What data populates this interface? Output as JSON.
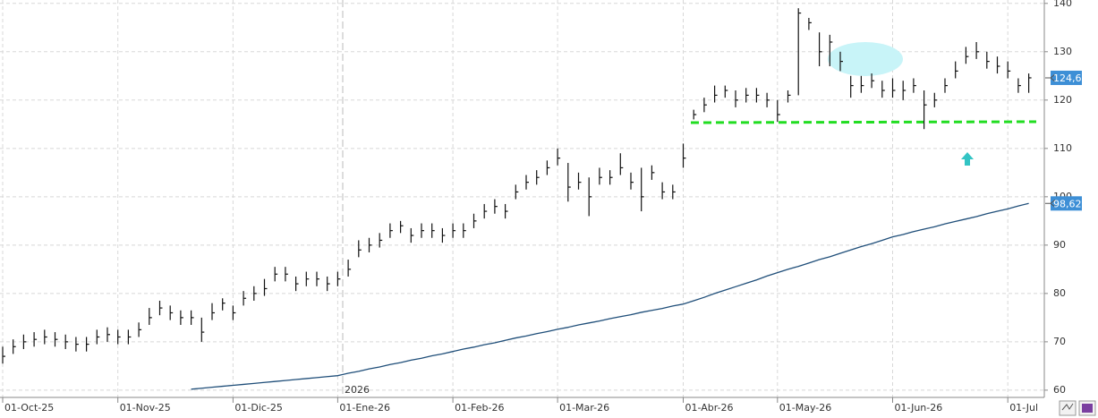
{
  "chart_data": {
    "type": "ohlc",
    "categories": [
      "01-Oct-25",
      null,
      null,
      null,
      null,
      null,
      null,
      null,
      null,
      null,
      null,
      "01-Nov-25",
      null,
      null,
      null,
      null,
      null,
      null,
      null,
      null,
      null,
      null,
      "01-Dic-25",
      null,
      null,
      null,
      null,
      null,
      null,
      null,
      null,
      null,
      "01-Ene-26",
      null,
      null,
      null,
      null,
      null,
      null,
      null,
      null,
      null,
      null,
      "01-Feb-26",
      null,
      null,
      null,
      null,
      null,
      null,
      null,
      null,
      null,
      "01-Mar-26",
      null,
      null,
      null,
      null,
      null,
      null,
      null,
      null,
      null,
      null,
      null,
      "01-Abr-26",
      null,
      null,
      null,
      null,
      null,
      null,
      null,
      null,
      "01-May-26",
      null,
      null,
      null,
      null,
      null,
      null,
      null,
      null,
      null,
      null,
      "01-Jun-26",
      null,
      null,
      null,
      null,
      null,
      null,
      null,
      null,
      null,
      null,
      "01-Jul",
      null,
      null
    ],
    "year_label": "2026",
    "ohlc": {
      "color": "#111111",
      "tag_color": "#3d8fd6",
      "last_label": "124,6",
      "high": [
        69,
        70.5,
        71.5,
        72,
        72.5,
        72,
        71.5,
        71,
        71,
        72.5,
        73,
        72.5,
        72.5,
        74,
        77,
        78.5,
        77.5,
        76.5,
        76.5,
        75,
        78,
        79,
        77.5,
        80.5,
        81.5,
        83,
        85.5,
        85.5,
        83.5,
        84.5,
        84.5,
        83.5,
        84.5,
        87,
        91,
        91.5,
        92.5,
        94.5,
        95,
        93.5,
        94.5,
        94.5,
        93.5,
        94.5,
        94.5,
        96.5,
        98.5,
        99.5,
        98.5,
        102.5,
        104.5,
        105.5,
        107.5,
        110,
        107,
        105,
        104,
        106,
        105.5,
        109,
        105,
        106,
        106.5,
        103,
        102.5,
        111,
        118,
        120.5,
        123,
        123,
        122,
        122.5,
        122.5,
        121.5,
        120,
        122,
        139,
        137,
        134,
        133.5,
        130,
        125,
        125,
        125.5,
        124,
        124.5,
        124,
        124.5,
        122,
        121.5,
        124.5,
        128,
        131,
        132,
        130,
        129,
        128,
        124.5,
        125.5
      ],
      "low": [
        65.5,
        67.5,
        68.5,
        69,
        69.5,
        69,
        68.5,
        68,
        68,
        69.5,
        70,
        69.5,
        69.5,
        71,
        73.5,
        75.5,
        74.5,
        73.5,
        73.5,
        70,
        74.5,
        76.5,
        74.5,
        77.5,
        78.5,
        79.5,
        82.5,
        82.5,
        80.5,
        81.5,
        81.5,
        80.5,
        81.5,
        83.5,
        87.5,
        88.5,
        89.5,
        91.5,
        92.5,
        90.5,
        91.5,
        91.5,
        90.5,
        91.5,
        91.5,
        93.5,
        95.5,
        96.5,
        95.5,
        99.5,
        101.5,
        102.5,
        104.5,
        106.5,
        99,
        101.5,
        96,
        102.5,
        102.5,
        104.5,
        101.5,
        97,
        103.5,
        99.5,
        99.5,
        106,
        116,
        117.5,
        119.5,
        120.5,
        118.5,
        119.5,
        119.5,
        118.5,
        115.5,
        119.5,
        121,
        134.5,
        127,
        127,
        126,
        120.5,
        121.5,
        122.5,
        120.5,
        120.5,
        120,
        121.5,
        114,
        118.5,
        121.5,
        124.5,
        127.5,
        128.5,
        126.5,
        125.5,
        124.5,
        121.5,
        121.5
      ],
      "close": [
        67,
        69,
        70,
        70.5,
        71,
        70.5,
        70,
        69.5,
        69.5,
        71,
        71.5,
        71,
        71,
        72.5,
        75,
        77,
        76,
        75,
        75,
        72,
        76,
        78,
        76,
        79,
        80,
        81,
        84,
        84,
        82,
        83,
        83,
        82,
        83,
        85,
        89,
        90,
        91,
        93,
        94,
        92,
        93,
        93,
        92,
        93,
        93,
        95,
        97,
        98,
        97,
        101,
        103,
        104,
        106,
        108,
        102,
        103,
        100,
        104,
        104,
        106,
        103,
        100,
        105,
        101,
        101,
        108,
        117,
        119,
        121,
        122,
        120,
        121,
        121,
        120,
        117,
        121,
        138,
        136,
        130,
        132,
        128,
        123,
        123,
        124,
        122,
        122,
        122,
        123,
        119,
        120,
        123,
        126,
        129,
        130,
        128,
        127,
        126,
        123,
        124.6
      ]
    },
    "lines": [
      {
        "color": "#1f4e79",
        "tag_color": "#3d8fd6",
        "last_label": "98,62",
        "values": [
          null,
          null,
          null,
          null,
          null,
          null,
          null,
          null,
          null,
          null,
          null,
          null,
          null,
          null,
          null,
          null,
          null,
          null,
          60.2,
          60.4,
          60.6,
          60.8,
          61.0,
          61.2,
          61.4,
          61.6,
          61.8,
          62.0,
          62.2,
          62.4,
          62.6,
          62.8,
          63.0,
          63.5,
          63.9,
          64.4,
          64.8,
          65.3,
          65.7,
          66.2,
          66.6,
          67.1,
          67.5,
          68.0,
          68.5,
          68.9,
          69.4,
          69.8,
          70.3,
          70.8,
          71.2,
          71.7,
          72.1,
          72.6,
          73.0,
          73.5,
          73.9,
          74.3,
          74.8,
          75.2,
          75.6,
          76.1,
          76.5,
          76.9,
          77.4,
          77.8,
          78.5,
          79.2,
          80.0,
          80.7,
          81.4,
          82.1,
          82.8,
          83.6,
          84.3,
          85.0,
          85.6,
          86.3,
          87.0,
          87.6,
          88.3,
          89.0,
          89.7,
          90.3,
          91.0,
          91.7,
          92.2,
          92.8,
          93.3,
          93.8,
          94.4,
          94.9,
          95.4,
          95.9,
          96.5,
          97.0,
          97.5,
          98.1,
          98.62
        ]
      }
    ],
    "ylim": [
      58.5,
      140.7
    ],
    "yticks": [
      60,
      70,
      80,
      90,
      100,
      110,
      120,
      130,
      140
    ],
    "grid": true
  }
}
